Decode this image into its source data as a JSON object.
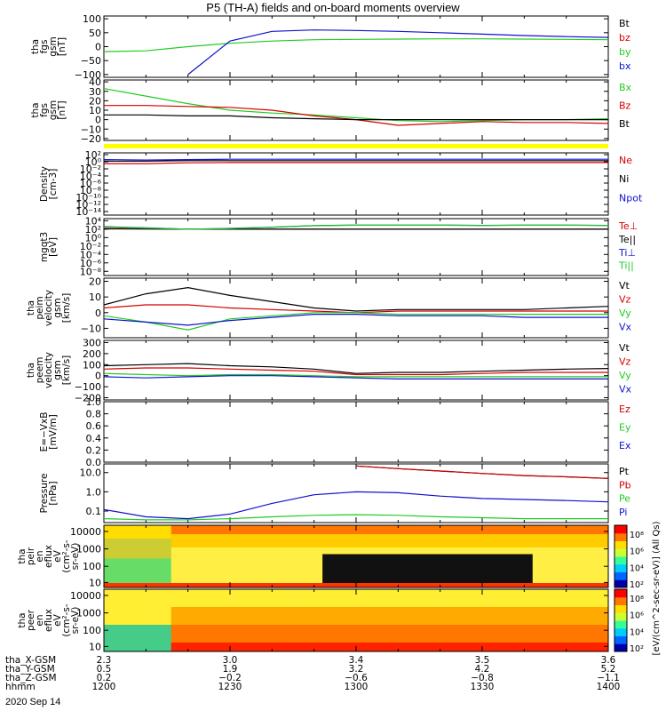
{
  "title": "P5 (TH-A) fields and on-board moments overview",
  "date": "2020 Sep 14",
  "colors": {
    "black": "#000000",
    "red": "#d40000",
    "green": "#22cc22",
    "blue": "#1010d0",
    "yellow": "#ffff00"
  },
  "chart_data": [
    {
      "type": "line",
      "panel": "fgs_gsm",
      "ylabel": [
        "tha",
        "fgs",
        "gsm",
        "[nT]"
      ],
      "yticks": [
        "100",
        "50",
        "0",
        "−50",
        "−100"
      ],
      "ylim": [
        -110,
        110
      ],
      "x_minutes": [
        0,
        10,
        20,
        30,
        40,
        50,
        60,
        70,
        80,
        90,
        100,
        110,
        120
      ],
      "series": [
        {
          "name": "Bt",
          "color": "black",
          "values": [
            null,
            null,
            null,
            null,
            null,
            null,
            null,
            null,
            null,
            null,
            null,
            null,
            null
          ]
        },
        {
          "name": "bz",
          "color": "red",
          "values": [
            null,
            null,
            null,
            null,
            null,
            null,
            null,
            null,
            null,
            null,
            null,
            null,
            null
          ]
        },
        {
          "name": "by",
          "color": "green",
          "values": [
            -18,
            -15,
            0,
            12,
            20,
            25,
            26,
            27,
            28,
            28,
            27,
            26,
            25
          ]
        },
        {
          "name": "bx",
          "color": "blue",
          "values": [
            null,
            null,
            -100,
            20,
            55,
            60,
            58,
            55,
            50,
            45,
            40,
            36,
            33
          ]
        }
      ]
    },
    {
      "type": "line",
      "panel": "fgs_gsm_zoom",
      "ylabel": [
        "tha",
        "fgs",
        "gsm",
        "[nT]"
      ],
      "yticks": [
        "40",
        "30",
        "20",
        "10",
        "0",
        "−10",
        "−20"
      ],
      "ylim": [
        -22,
        42
      ],
      "x_minutes": [
        0,
        10,
        20,
        30,
        40,
        50,
        60,
        70,
        80,
        90,
        100,
        110,
        120
      ],
      "series": [
        {
          "name": "Bx",
          "color": "green",
          "values": [
            33,
            25,
            17,
            10,
            7,
            5,
            2,
            -1,
            -2,
            -1,
            0,
            0,
            1
          ]
        },
        {
          "name": "Bz",
          "color": "red",
          "values": [
            15,
            15,
            14,
            13,
            10,
            4,
            0,
            -6,
            -4,
            -2,
            -3,
            -3,
            -4
          ]
        },
        {
          "name": "Bt",
          "color": "black",
          "values": [
            5,
            5,
            4,
            4,
            2,
            1,
            0,
            0,
            0,
            0,
            0,
            0,
            0
          ]
        }
      ]
    },
    {
      "type": "line",
      "panel": "density",
      "ylabel": [
        "Density",
        "[cm-3]"
      ],
      "yticks": [
        "10²",
        "10⁰",
        "10⁻²",
        "10⁻⁴",
        "10⁻⁶",
        "10⁻⁸",
        "10⁻¹⁰",
        "10⁻¹²",
        "10⁻¹⁴"
      ],
      "log": true,
      "ylim_log10": [
        -15,
        2.5
      ],
      "legend": [
        "Ne",
        "Ni",
        "Npot"
      ],
      "legend_colors": [
        "red",
        "black",
        "blue"
      ],
      "series": [
        {
          "name": "Ne",
          "color": "red",
          "values": [
            0.3,
            0.3,
            0.5,
            0.6,
            0.6,
            0.6,
            0.6,
            0.6,
            0.6,
            0.6,
            0.6,
            0.6,
            0.6
          ]
        },
        {
          "name": "Ni",
          "color": "black",
          "values": [
            1.5,
            1.5,
            2.0,
            2.0,
            2.0,
            2.0,
            2.0,
            2.0,
            2.0,
            2.0,
            2.0,
            2.0,
            2.0
          ]
        },
        {
          "name": "Npot",
          "color": "blue",
          "values": [
            4,
            3,
            4,
            5,
            5,
            5,
            5,
            5,
            5,
            5,
            5,
            5,
            5
          ]
        }
      ]
    },
    {
      "type": "line",
      "panel": "temperature",
      "ylabel": [
        "mgqt3",
        "[eV]"
      ],
      "yticks": [
        "10⁴",
        "10²",
        "10⁰",
        "10⁻²",
        "10⁻⁴",
        "10⁻⁶",
        "10⁻⁸"
      ],
      "log": true,
      "ylim_log10": [
        -9,
        4.5
      ],
      "legend": [
        "Te⊥",
        "Te||",
        "Ti⊥",
        "Ti||"
      ],
      "legend_colors": [
        "red",
        "black",
        "blue",
        "green"
      ],
      "series": [
        {
          "name": "Te⊥",
          "color": "red",
          "values": [
            150,
            120,
            100,
            100,
            100,
            100,
            100,
            100,
            100,
            100,
            100,
            100,
            100
          ]
        },
        {
          "name": "Te||",
          "color": "black",
          "values": [
            120,
            110,
            100,
            100,
            100,
            100,
            100,
            100,
            100,
            100,
            100,
            100,
            100
          ]
        },
        {
          "name": "Ti⊥",
          "color": "blue",
          "values": [
            400,
            200,
            100,
            150,
            300,
            700,
            900,
            900,
            900,
            800,
            900,
            900,
            800
          ]
        },
        {
          "name": "Ti||",
          "color": "green",
          "values": [
            350,
            180,
            100,
            140,
            280,
            650,
            850,
            850,
            850,
            750,
            850,
            850,
            750
          ]
        }
      ]
    },
    {
      "type": "line",
      "panel": "peim_velocity",
      "ylabel": [
        "tha",
        "peim",
        "velocity",
        "gsm",
        "[km/s]"
      ],
      "yticks": [
        "20",
        "10",
        "0",
        "−10"
      ],
      "ylim": [
        -16,
        22
      ],
      "legend": [
        "Vt",
        "Vz",
        "Vy",
        "Vx"
      ],
      "legend_colors": [
        "black",
        "red",
        "green",
        "blue"
      ],
      "series": [
        {
          "name": "Vt",
          "color": "black",
          "values": [
            5,
            12,
            16,
            11,
            7,
            3,
            1,
            2,
            2,
            2,
            2,
            3,
            4
          ]
        },
        {
          "name": "Vz",
          "color": "red",
          "values": [
            3,
            5,
            5,
            3,
            2,
            1,
            0,
            1,
            1,
            1,
            1,
            1,
            1
          ]
        },
        {
          "name": "Vy",
          "color": "green",
          "values": [
            -2,
            -6,
            -11,
            -4,
            -2,
            0,
            0,
            -1,
            -1,
            -1,
            -1,
            -1,
            -1
          ]
        },
        {
          "name": "Vx",
          "color": "blue",
          "values": [
            -4,
            -6,
            -8,
            -5,
            -3,
            -1,
            -1,
            -2,
            -2,
            -2,
            -3,
            -3,
            -3
          ]
        }
      ]
    },
    {
      "type": "line",
      "panel": "peem_velocity",
      "ylabel": [
        "tha",
        "peem",
        "velocity",
        "gsm",
        "[km/s]"
      ],
      "yticks": [
        "300",
        "200",
        "100",
        "0",
        "−100",
        "−200"
      ],
      "ylim": [
        -220,
        320
      ],
      "legend": [
        "Vt",
        "Vz",
        "Vy",
        "Vx"
      ],
      "legend_colors": [
        "black",
        "red",
        "green",
        "blue"
      ],
      "series": [
        {
          "name": "Vt",
          "color": "black",
          "values": [
            90,
            100,
            110,
            90,
            80,
            60,
            20,
            30,
            30,
            40,
            50,
            60,
            65
          ]
        },
        {
          "name": "Vz",
          "color": "red",
          "values": [
            60,
            70,
            70,
            60,
            50,
            40,
            10,
            10,
            10,
            20,
            30,
            30,
            30
          ]
        },
        {
          "name": "Vy",
          "color": "green",
          "values": [
            20,
            10,
            0,
            10,
            10,
            0,
            -10,
            -10,
            -10,
            -10,
            -10,
            -10,
            -10
          ]
        },
        {
          "name": "Vx",
          "color": "blue",
          "values": [
            -10,
            -20,
            -10,
            0,
            0,
            -10,
            -20,
            -30,
            -30,
            -30,
            -30,
            -30,
            -30
          ]
        }
      ]
    },
    {
      "type": "line",
      "panel": "efield",
      "ylabel": [
        "E=−VxB",
        "[mV/m]"
      ],
      "yticks": [
        "1.0",
        "0.8",
        "0.6",
        "0.4",
        "0.2",
        "0.0"
      ],
      "ylim": [
        0,
        1
      ],
      "legend": [
        "Ez",
        "Ey",
        "Ex"
      ],
      "legend_colors": [
        "red",
        "green",
        "blue"
      ],
      "series": []
    },
    {
      "type": "line",
      "panel": "pressure",
      "ylabel": [
        "Pressure",
        "[nPa]"
      ],
      "yticks": [
        "10.0",
        "1.0",
        "0.1"
      ],
      "log": true,
      "ylim_log10": [
        -1.6,
        1.45
      ],
      "legend": [
        "Pt",
        "Pb",
        "Pe",
        "Pi"
      ],
      "legend_colors": [
        "black",
        "red",
        "green",
        "blue"
      ],
      "series": [
        {
          "name": "Pt",
          "color": "black",
          "values": [
            null,
            null,
            null,
            null,
            null,
            null,
            22,
            16,
            12,
            9,
            7,
            6,
            5
          ]
        },
        {
          "name": "Pb",
          "color": "red",
          "values": [
            null,
            null,
            null,
            null,
            null,
            null,
            22,
            16,
            12,
            9,
            7,
            6,
            5
          ]
        },
        {
          "name": "Pe",
          "color": "green",
          "values": [
            0.04,
            0.035,
            0.035,
            0.04,
            0.05,
            0.06,
            0.065,
            0.06,
            0.05,
            0.045,
            0.04,
            0.04,
            0.04
          ]
        },
        {
          "name": "Pi",
          "color": "blue",
          "values": [
            0.12,
            0.05,
            0.04,
            0.07,
            0.25,
            0.7,
            1.0,
            0.9,
            0.6,
            0.45,
            0.4,
            0.35,
            0.3
          ]
        }
      ]
    },
    {
      "type": "heatmap",
      "panel": "peir_en_eflux",
      "ylabel": [
        "tha",
        "peir",
        "en",
        "eflux",
        "eV",
        "(cm²-s-",
        "sr-eV)"
      ],
      "yticks": [
        "10000",
        "1000",
        "100",
        "10"
      ]
    },
    {
      "type": "heatmap",
      "panel": "peer_en_eflux",
      "ylabel": [
        "tha",
        "peer",
        "en",
        "eflux",
        "eV",
        "(cm²-s-",
        "sr-eV)"
      ],
      "yticks": [
        "10000",
        "1000",
        "100",
        "10"
      ]
    }
  ],
  "colorbar": {
    "label": "[eV/(cm^2-sec-sr-eV)] (All Qs)",
    "upper_ticks": [
      "10⁸",
      "10⁶",
      "10⁴",
      "10²"
    ],
    "lower_ticks": [
      "10⁸",
      "10⁶",
      "10⁴",
      "10²"
    ]
  },
  "axis_table": {
    "row_labels": [
      "tha_X-GSM",
      "tha_Y-GSM",
      "tha_Z-GSM",
      "hhmm"
    ],
    "columns": [
      [
        "2.3",
        "0.5",
        "0.2",
        "1200"
      ],
      [
        "3.0",
        "1.9",
        "−0.2",
        "1230"
      ],
      [
        "3.4",
        "3.2",
        "−0.6",
        "1300"
      ],
      [
        "3.5",
        "4.2",
        "−0.8",
        "1330"
      ],
      [
        "3.6",
        "5.2",
        "−1.1",
        "1400"
      ]
    ]
  }
}
